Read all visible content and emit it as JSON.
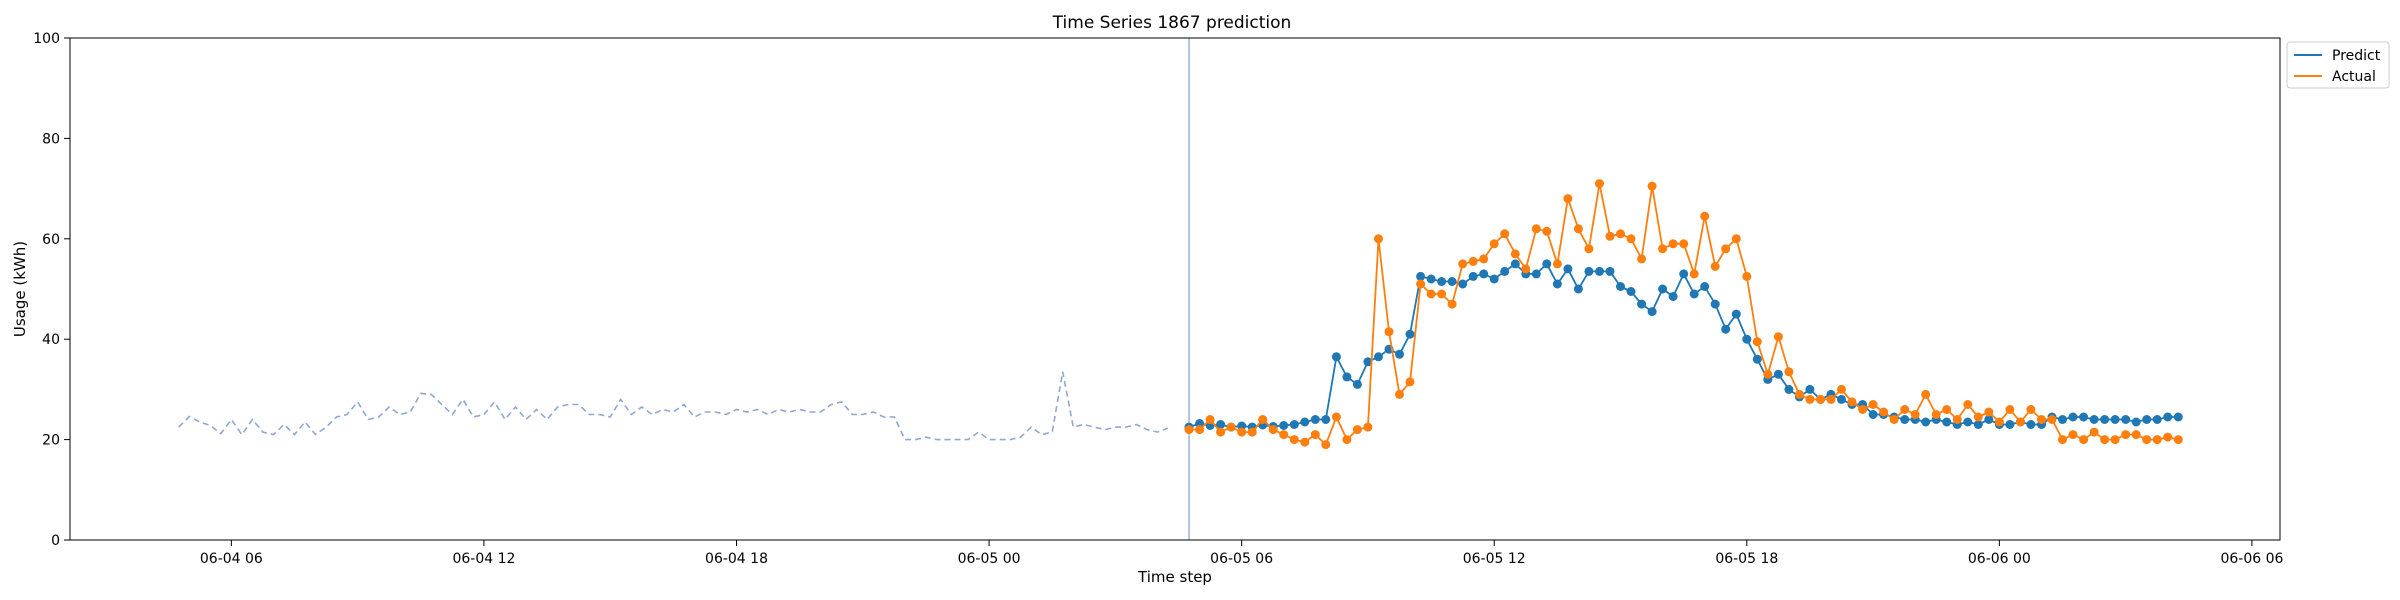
{
  "chart_data": {
    "type": "line",
    "title": "Time Series 1867 prediction",
    "xlabel": "Time step",
    "ylabel": "Usage (kWh)",
    "ylim": [
      0,
      100
    ],
    "yticks": [
      0,
      20,
      40,
      60,
      80,
      100
    ],
    "xlim": [
      "2024-06-04T02:10",
      "2024-06-06T06:40"
    ],
    "xticks": [
      {
        "at": "2024-06-04T06:00",
        "label": "06-04 06"
      },
      {
        "at": "2024-06-04T12:00",
        "label": "06-04 12"
      },
      {
        "at": "2024-06-04T18:00",
        "label": "06-04 18"
      },
      {
        "at": "2024-06-05T00:00",
        "label": "06-05 00"
      },
      {
        "at": "2024-06-05T06:00",
        "label": "06-05 06"
      },
      {
        "at": "2024-06-05T12:00",
        "label": "06-05 12"
      },
      {
        "at": "2024-06-05T18:00",
        "label": "06-05 18"
      },
      {
        "at": "2024-06-06T00:00",
        "label": "06-06 00"
      },
      {
        "at": "2024-06-06T06:00",
        "label": "06-06 06"
      }
    ],
    "legend": {
      "position": "upper-right-outside",
      "entries": [
        "Predict",
        "Actual"
      ]
    },
    "grid": false,
    "forecast_start": "2024-06-05T04:45",
    "colors": {
      "history": "#8fa8cf",
      "predict": "#1f77b4",
      "actual": "#ff7f0e",
      "divider": "#8fa8cf"
    },
    "history": {
      "name": "history",
      "start": "2024-06-04T04:45",
      "step_minutes": 15,
      "values": [
        22.5,
        24.6,
        23.5,
        22.8,
        21.2,
        24.0,
        21.0,
        24.0,
        21.5,
        21.0,
        23.0,
        21.0,
        23.5,
        21.0,
        22.5,
        24.5,
        25.0,
        27.5,
        24.0,
        24.5,
        26.5,
        25.0,
        25.5,
        29.2,
        29.0,
        27.0,
        25.0,
        28.0,
        24.5,
        25.0,
        27.5,
        24.0,
        26.5,
        24.0,
        26.0,
        24.0,
        26.5,
        27.0,
        27.0,
        25.0,
        25.0,
        24.5,
        28.0,
        25.0,
        26.5,
        25.0,
        26.0,
        25.5,
        27.0,
        24.5,
        25.5,
        25.5,
        25.0,
        26.0,
        25.5,
        26.0,
        25.0,
        26.0,
        25.5,
        26.0,
        25.5,
        25.5,
        27.0,
        27.5,
        25.0,
        25.0,
        25.5,
        24.5,
        24.5,
        20.0,
        20.0,
        20.5,
        20.0,
        20.0,
        20.0,
        20.0,
        21.5,
        20.0,
        20.0,
        20.0,
        20.5,
        22.5,
        21.0,
        21.5,
        33.5,
        22.5,
        23.0,
        22.5,
        22.0,
        22.5,
        22.5,
        23.0,
        22.0,
        21.5,
        22.3
      ]
    },
    "series": [
      {
        "name": "Predict",
        "start": "2024-06-05T04:45",
        "step_minutes": 15,
        "values": [
          22.5,
          23.2,
          22.8,
          23.0,
          22.5,
          22.7,
          22.5,
          22.9,
          22.6,
          22.8,
          23.0,
          23.5,
          24.0,
          24.0,
          36.5,
          32.5,
          31.0,
          35.5,
          36.5,
          38.0,
          37.0,
          41.0,
          52.5,
          52.0,
          51.5,
          51.5,
          51.0,
          52.5,
          53.0,
          52.0,
          53.5,
          55.0,
          53.0,
          53.0,
          55.0,
          51.0,
          54.0,
          50.0,
          53.5,
          53.5,
          53.5,
          50.5,
          49.5,
          47.0,
          45.5,
          50.0,
          48.5,
          53.0,
          49.0,
          50.5,
          47.0,
          42.0,
          45.0,
          40.0,
          36.0,
          32.0,
          33.0,
          30.0,
          28.5,
          30.0,
          28.0,
          29.0,
          28.0,
          27.0,
          27.0,
          25.0,
          25.0,
          24.5,
          24.0,
          24.0,
          23.5,
          24.0,
          23.5,
          23.0,
          23.5,
          23.0,
          24.0,
          23.0,
          23.0,
          23.5,
          23.0,
          23.0,
          24.5,
          24.0,
          24.5,
          24.5,
          24.0,
          24.0,
          24.0,
          24.0,
          23.5,
          24.0,
          24.0,
          24.5,
          24.5
        ]
      },
      {
        "name": "Actual",
        "start": "2024-06-05T04:45",
        "step_minutes": 15,
        "values": [
          22.0,
          22.0,
          24.0,
          21.5,
          22.5,
          21.5,
          21.5,
          24.0,
          22.0,
          21.0,
          20.0,
          19.5,
          21.0,
          19.0,
          24.5,
          20.0,
          22.0,
          22.5,
          60.0,
          41.5,
          29.0,
          31.5,
          51.0,
          49.0,
          49.0,
          47.0,
          55.0,
          55.5,
          56.0,
          59.0,
          61.0,
          57.0,
          54.0,
          62.0,
          61.5,
          55.0,
          68.0,
          62.0,
          58.0,
          71.0,
          60.5,
          61.0,
          60.0,
          56.0,
          70.5,
          58.0,
          59.0,
          59.0,
          53.0,
          64.5,
          54.5,
          58.0,
          60.0,
          52.5,
          39.5,
          33.0,
          40.5,
          33.5,
          29.0,
          28.0,
          28.0,
          28.0,
          30.0,
          27.5,
          26.0,
          27.0,
          25.5,
          24.0,
          26.0,
          25.0,
          29.0,
          25.0,
          26.0,
          24.0,
          27.0,
          24.5,
          25.5,
          23.5,
          26.0,
          23.5,
          26.0,
          24.0,
          24.0,
          20.0,
          21.0,
          20.0,
          21.5,
          20.0,
          20.0,
          21.0,
          21.0,
          20.0,
          20.0,
          20.5,
          20.0
        ]
      }
    ]
  }
}
